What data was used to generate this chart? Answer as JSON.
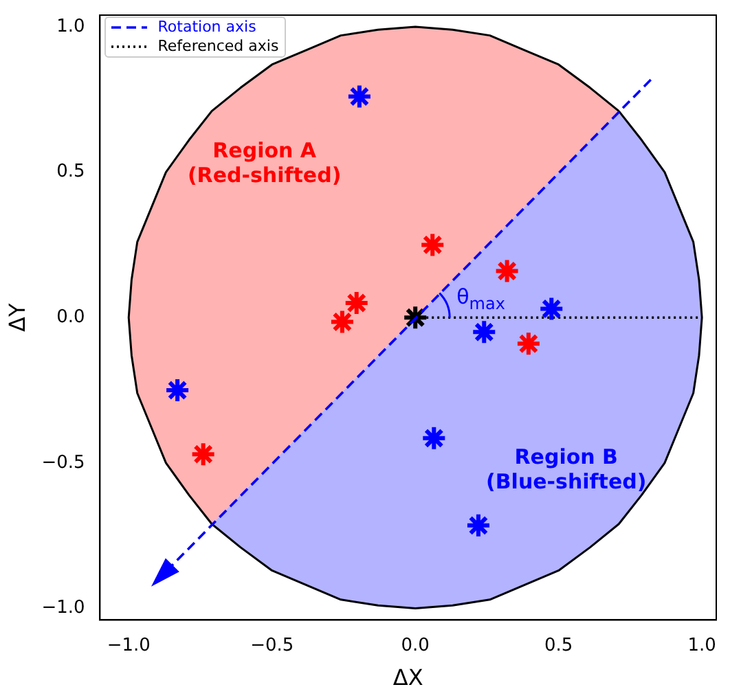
{
  "chart_data": {
    "type": "scatter",
    "xlabel": "ΔX",
    "ylabel": "ΔY",
    "xlim": [
      -1.1,
      1.05
    ],
    "ylim": [
      -1.04,
      1.04
    ],
    "xticks": [
      {
        "value": -1,
        "label": "−1.0"
      },
      {
        "value": -0.5,
        "label": "−0.5"
      },
      {
        "value": 0,
        "label": "0.0"
      },
      {
        "value": 0.5,
        "label": "0.5"
      },
      {
        "value": 1,
        "label": "1.0"
      }
    ],
    "yticks": [
      {
        "value": -1,
        "label": "−1.0"
      },
      {
        "value": -0.5,
        "label": "−0.5"
      },
      {
        "value": 0,
        "label": "0.0"
      },
      {
        "value": 0.5,
        "label": "0.5"
      },
      {
        "value": 1,
        "label": "1.0"
      }
    ],
    "grid": false,
    "legend": "top left",
    "annotations": [
      "Rotation axis",
      "Region A\n(Red-shifted)",
      "Region B\n(Blue-shifted)",
      "θ$_{max}$"
    ],
    "series": [
      {
        "type": "area",
        "color": "#ffb3b3",
        "x": [
          0.71,
          0.61,
          0.5,
          0.38,
          0.26,
          0.13,
          0,
          -0.13,
          -0.26,
          -0.38,
          -0.5,
          -0.61,
          -0.71,
          -0.79,
          -0.87,
          -0.92,
          -0.97,
          -0.99,
          -1,
          -0.99,
          -0.97,
          -0.92,
          -0.87,
          -0.79,
          -0.71
        ],
        "values": [
          0.71,
          0.79,
          0.87,
          0.92,
          0.97,
          0.99,
          1,
          0.99,
          0.97,
          0.92,
          0.87,
          0.79,
          0.71,
          0.61,
          0.5,
          0.38,
          0.26,
          0.13,
          0,
          -0.13,
          -0.26,
          -0.38,
          -0.5,
          -0.61,
          -0.71
        ]
      },
      {
        "type": "area",
        "color": "#b3b3ff",
        "x": [
          -0.71,
          -0.61,
          -0.5,
          -0.38,
          -0.26,
          -0.13,
          0,
          0.13,
          0.26,
          0.38,
          0.5,
          0.61,
          0.71,
          0.79,
          0.87,
          0.92,
          0.97,
          0.99,
          1,
          0.99,
          0.97,
          0.92,
          0.87,
          0.79,
          0.71
        ],
        "values": [
          -0.71,
          -0.79,
          -0.87,
          -0.92,
          -0.97,
          -0.99,
          -1,
          -0.99,
          -0.97,
          -0.92,
          -0.87,
          -0.79,
          -0.71,
          -0.61,
          -0.5,
          -0.38,
          -0.26,
          -0.13,
          0,
          0.13,
          0.26,
          0.38,
          0.5,
          0.61,
          0.71
        ]
      },
      {
        "type": "line",
        "name": "Referenced axis",
        "color": "#000000",
        "line_style": "dotted",
        "x": [
          0,
          1
        ],
        "values": [
          0,
          0
        ]
      },
      {
        "color": "#ff0000",
        "x": [
          0.06,
          0.32,
          -0.205,
          -0.255,
          0.395,
          -0.74
        ],
        "values": [
          0.25,
          0.16,
          0.05,
          -0.015,
          -0.09,
          -0.47
        ]
      },
      {
        "color": "#0000ff",
        "x": [
          -0.195,
          -0.83,
          0.24,
          0.475,
          0.065,
          0.22
        ],
        "values": [
          0.76,
          -0.25,
          -0.05,
          0.03,
          -0.415,
          -0.715
        ]
      },
      {
        "color": "#000000",
        "x": [
          0
        ],
        "values": [
          0
        ]
      }
    ]
  }
}
